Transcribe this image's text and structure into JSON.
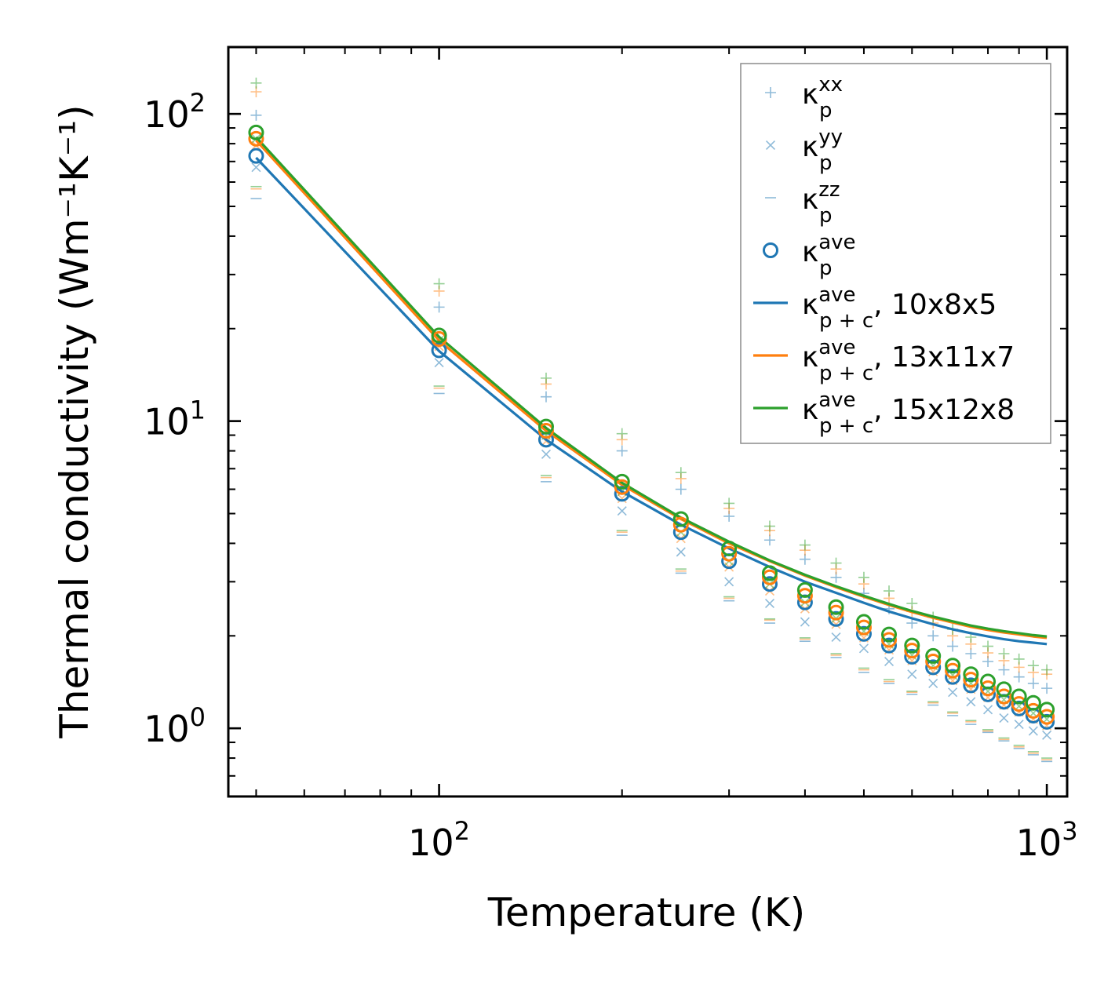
{
  "chart_data": {
    "type": "scatter",
    "xlabel": "Temperature (K)",
    "ylabel": "Thermal conductivity (Wm⁻¹K⁻¹)",
    "xscale": "log",
    "yscale": "log",
    "xlim": [
      45,
      1080
    ],
    "ylim": [
      0.6,
      165
    ],
    "x_ticks": [
      {
        "base": "10",
        "exp": "2",
        "value": 100
      },
      {
        "base": "10",
        "exp": "3",
        "value": 1000
      }
    ],
    "y_ticks": [
      {
        "base": "10",
        "exp": "0",
        "value": 1
      },
      {
        "base": "10",
        "exp": "1",
        "value": 10
      },
      {
        "base": "10",
        "exp": "2",
        "value": 100
      }
    ],
    "x": [
      50,
      100,
      150,
      200,
      250,
      300,
      350,
      400,
      450,
      500,
      550,
      600,
      650,
      700,
      750,
      800,
      850,
      900,
      950,
      1000
    ],
    "series": [
      {
        "name": "κ_p^xx (10x8x5)",
        "mesh": "10x8x5",
        "component": "xx",
        "marker": "plus",
        "values": [
          99,
          23.5,
          12,
          8,
          6,
          4.9,
          4.1,
          3.55,
          3.1,
          2.75,
          2.45,
          2.2,
          2.0,
          1.85,
          1.75,
          1.65,
          1.55,
          1.47,
          1.4,
          1.35
        ]
      },
      {
        "name": "κ_p^xx (13x11x7)",
        "mesh": "13x11x7",
        "component": "xx",
        "marker": "plus",
        "values": [
          118,
          26.5,
          13.2,
          8.7,
          6.5,
          5.2,
          4.4,
          3.8,
          3.3,
          2.95,
          2.65,
          2.4,
          2.2,
          2.0,
          1.88,
          1.76,
          1.66,
          1.58,
          1.52,
          1.5
        ]
      },
      {
        "name": "κ_p^xx (15x12x8)",
        "mesh": "15x12x8",
        "component": "xx",
        "marker": "plus",
        "values": [
          126,
          28,
          13.8,
          9.1,
          6.8,
          5.4,
          4.55,
          3.95,
          3.45,
          3.1,
          2.8,
          2.55,
          2.3,
          2.1,
          1.98,
          1.85,
          1.75,
          1.68,
          1.6,
          1.55
        ]
      },
      {
        "name": "κ_p^yy (10x8x5)",
        "mesh": "10x8x5",
        "component": "yy",
        "marker": "x",
        "values": [
          67,
          15.5,
          7.8,
          5.1,
          3.75,
          3.0,
          2.55,
          2.22,
          1.98,
          1.82,
          1.65,
          1.5,
          1.4,
          1.31,
          1.22,
          1.15,
          1.08,
          1.03,
          0.98,
          0.95
        ]
      },
      {
        "name": "κ_p^yy (13x11x7)",
        "mesh": "13x11x7",
        "component": "yy",
        "marker": "x",
        "values": [
          79,
          17.5,
          8.6,
          5.6,
          4.15,
          3.35,
          2.8,
          2.45,
          2.18,
          1.97,
          1.8,
          1.66,
          1.53,
          1.43,
          1.34,
          1.26,
          1.19,
          1.13,
          1.07,
          1.02
        ]
      },
      {
        "name": "κ_p^yy (15x12x8)",
        "mesh": "15x12x8",
        "component": "yy",
        "marker": "x",
        "values": [
          83,
          18.3,
          9.0,
          5.9,
          4.35,
          3.5,
          2.95,
          2.57,
          2.28,
          2.07,
          1.88,
          1.73,
          1.6,
          1.49,
          1.4,
          1.32,
          1.24,
          1.18,
          1.12,
          1.07
        ]
      },
      {
        "name": "κ_p^zz (10x8x5)",
        "mesh": "10x8x5",
        "component": "zz",
        "marker": "dash",
        "values": [
          53,
          12.3,
          6.35,
          4.25,
          3.2,
          2.6,
          2.2,
          1.92,
          1.7,
          1.52,
          1.4,
          1.29,
          1.19,
          1.1,
          1.03,
          0.97,
          0.91,
          0.86,
          0.82,
          0.78
        ]
      },
      {
        "name": "κ_p^zz (13x11x7)",
        "mesh": "13x11x7",
        "component": "zz",
        "marker": "dash",
        "values": [
          57,
          12.8,
          6.55,
          4.35,
          3.25,
          2.65,
          2.25,
          1.95,
          1.73,
          1.55,
          1.42,
          1.31,
          1.21,
          1.12,
          1.05,
          0.98,
          0.92,
          0.87,
          0.83,
          0.79
        ]
      },
      {
        "name": "κ_p^zz (15x12x8)",
        "mesh": "15x12x8",
        "component": "zz",
        "marker": "dash",
        "values": [
          58,
          13.0,
          6.65,
          4.4,
          3.3,
          2.68,
          2.27,
          1.97,
          1.75,
          1.57,
          1.44,
          1.32,
          1.22,
          1.13,
          1.06,
          0.99,
          0.93,
          0.88,
          0.84,
          0.8
        ]
      },
      {
        "name": "κ_p^ave (10x8x5)",
        "mesh": "10x8x5",
        "component": "ave",
        "marker": "circle",
        "values": [
          73,
          17,
          8.7,
          5.8,
          4.35,
          3.5,
          2.95,
          2.57,
          2.27,
          2.03,
          1.86,
          1.71,
          1.58,
          1.47,
          1.38,
          1.29,
          1.22,
          1.16,
          1.1,
          1.05
        ]
      },
      {
        "name": "κ_p^ave (13x11x7)",
        "mesh": "13x11x7",
        "component": "ave",
        "marker": "circle",
        "values": [
          83,
          18.5,
          9.3,
          6.1,
          4.6,
          3.7,
          3.1,
          2.7,
          2.38,
          2.13,
          1.94,
          1.79,
          1.65,
          1.54,
          1.44,
          1.35,
          1.27,
          1.2,
          1.14,
          1.09
        ]
      },
      {
        "name": "κ_p^ave (15x12x8)",
        "mesh": "15x12x8",
        "component": "ave",
        "marker": "circle",
        "values": [
          87,
          19,
          9.6,
          6.35,
          4.8,
          3.85,
          3.2,
          2.82,
          2.48,
          2.22,
          2.02,
          1.86,
          1.72,
          1.6,
          1.5,
          1.42,
          1.34,
          1.27,
          1.21,
          1.15
        ]
      },
      {
        "name": "κ_p+c^ave, 10x8x5",
        "mesh": "10x8x5",
        "component": "ave",
        "marker": "line",
        "values": [
          72,
          16.9,
          8.7,
          5.9,
          4.6,
          3.85,
          3.35,
          3.0,
          2.76,
          2.56,
          2.4,
          2.28,
          2.18,
          2.1,
          2.04,
          1.99,
          1.95,
          1.92,
          1.9,
          1.88
        ]
      },
      {
        "name": "κ_p+c^ave, 13x11x7",
        "mesh": "13x11x7",
        "component": "ave",
        "marker": "line",
        "values": [
          82,
          18.3,
          9.3,
          6.2,
          4.8,
          4.0,
          3.5,
          3.14,
          2.88,
          2.68,
          2.52,
          2.39,
          2.29,
          2.21,
          2.14,
          2.09,
          2.05,
          2.02,
          1.99,
          1.97
        ]
      },
      {
        "name": "κ_p+c^ave, 15x12x8",
        "mesh": "15x12x8",
        "component": "ave",
        "marker": "line",
        "values": [
          84,
          18.8,
          9.5,
          6.3,
          4.85,
          4.05,
          3.52,
          3.16,
          2.9,
          2.7,
          2.54,
          2.41,
          2.31,
          2.23,
          2.16,
          2.11,
          2.07,
          2.04,
          2.01,
          1.99
        ]
      }
    ],
    "legend": {
      "position": "top-right",
      "entries": [
        {
          "base": "κ",
          "sup": "xx",
          "sub": "p",
          "suffix": "",
          "marker": "plus",
          "color": "#1f77b4"
        },
        {
          "base": "κ",
          "sup": "yy",
          "sub": "p",
          "suffix": "",
          "marker": "x",
          "color": "#1f77b4"
        },
        {
          "base": "κ",
          "sup": "zz",
          "sub": "p",
          "suffix": "",
          "marker": "dash",
          "color": "#1f77b4"
        },
        {
          "base": "κ",
          "sup": "ave",
          "sub": "p",
          "suffix": "",
          "marker": "circle",
          "color": "#1f77b4"
        },
        {
          "base": "κ",
          "sup": "ave",
          "sub": "p + c",
          "suffix": ", 10x8x5",
          "marker": "line",
          "color": "#1f77b4"
        },
        {
          "base": "κ",
          "sup": "ave",
          "sub": "p + c",
          "suffix": ", 13x11x7",
          "marker": "line",
          "color": "#ff7f0e"
        },
        {
          "base": "κ",
          "sup": "ave",
          "sub": "p + c",
          "suffix": ", 15x12x8",
          "marker": "line",
          "color": "#2ca02c"
        }
      ]
    },
    "colors": {
      "10x8x5": "#1f77b4",
      "13x11x7": "#ff7f0e",
      "15x12x8": "#2ca02c"
    }
  }
}
